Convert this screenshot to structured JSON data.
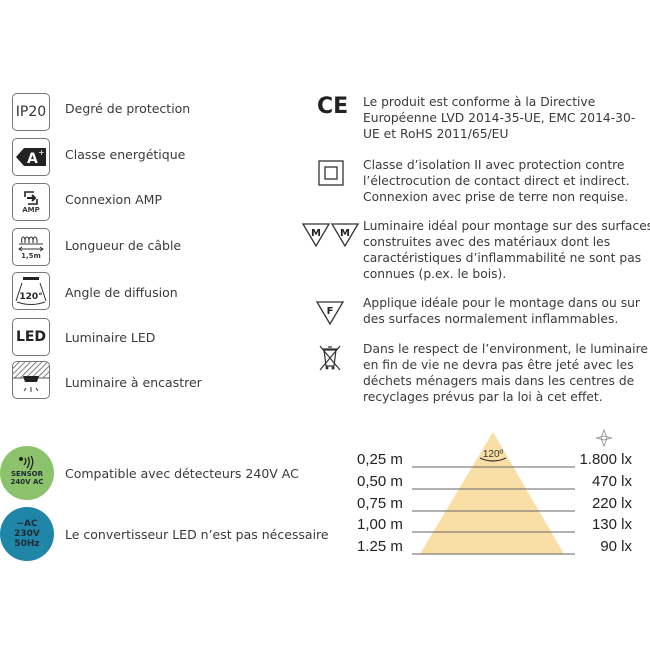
{
  "left_features": [
    {
      "icon": "ip20-icon",
      "icon_text": "IP20",
      "label": "Degré de protection"
    },
    {
      "icon": "energy-class-icon",
      "icon_text": "A+",
      "label": "Classe energétique"
    },
    {
      "icon": "amp-connection-icon",
      "icon_text": "AMP",
      "label": "Connexion AMP"
    },
    {
      "icon": "cable-length-icon",
      "icon_text": "1,5m",
      "label": "Longueur de câble"
    },
    {
      "icon": "beam-angle-icon",
      "icon_text": "120°",
      "label": "Angle de diffusion"
    },
    {
      "icon": "led-icon",
      "icon_text": "LED",
      "label": "Luminaire LED"
    },
    {
      "icon": "recessed-luminaire-icon",
      "label": "Luminaire à encastrer"
    }
  ],
  "badges": [
    {
      "icon": "sensor-icon",
      "lines": [
        "SENSOR",
        "240V AC"
      ],
      "label": "Compatible avec détecteurs 240V AC",
      "color": "#8cc26c"
    },
    {
      "icon": "ac-power-icon",
      "lines": [
        "~AC",
        "230V",
        "50Hz"
      ],
      "label": "Le convertisseur LED n’est pas nécessaire",
      "color": "#1f86a8"
    }
  ],
  "right_features": [
    {
      "icon": "ce-mark-icon",
      "icon_text": "CE",
      "lines": [
        "Le produit est conforme à la Directive",
        "Européenne LVD 2014-35-UE, EMC 2014-30-",
        "UE et RoHS 2011/65/EU"
      ]
    },
    {
      "icon": "class-ii-insulation-icon",
      "lines": [
        "Classe d’isolation II avec protection contre",
        "l’électrocution de contact direct et indirect.",
        "Connexion avec prise de terre non requise."
      ]
    },
    {
      "icon": "mm-mark-icon",
      "icon_text": "M",
      "lines": [
        "Luminaire idéal pour montage sur des surfaces",
        "construites avec des matériaux dont les",
        "caractéristiques d’inflammabilité ne sont pas",
        "connues (p.ex. le bois)."
      ]
    },
    {
      "icon": "f-mark-icon",
      "icon_text": "F",
      "lines": [
        "Applique idéale pour le montage dans ou sur",
        "des surfaces normalement inflammables."
      ]
    },
    {
      "icon": "weee-bin-icon",
      "lines": [
        "Dans le respect de l’environment, le luminaire",
        "en fin de vie ne devra pas être jeté avec les",
        "déchets ménagers mais dans les centres de",
        "recyclages prévus par la loi à cet effet."
      ]
    }
  ],
  "light_chart": {
    "angle": "120º",
    "beam_color": "#f9dfa6",
    "rows": [
      {
        "distance": "0,25 m",
        "lux": "1.800 lx"
      },
      {
        "distance": "0,50 m",
        "lux": "470 lx"
      },
      {
        "distance": "0,75 m",
        "lux": "220 lx"
      },
      {
        "distance": "1,00 m",
        "lux": "130 lx"
      },
      {
        "distance": "1.25 m",
        "lux": "90 lx"
      }
    ]
  }
}
